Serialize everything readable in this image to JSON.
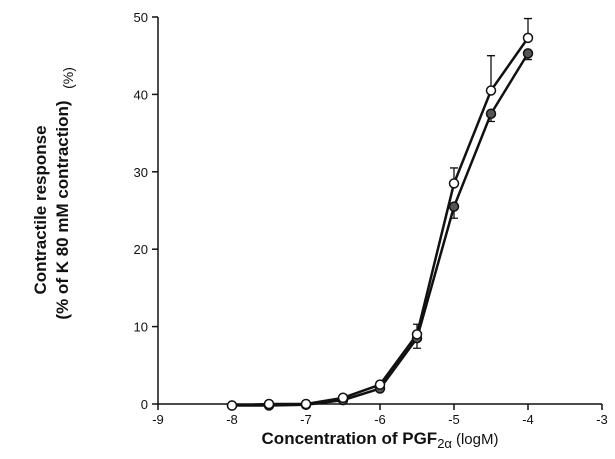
{
  "chart_data": {
    "type": "line",
    "y_label_lines": [
      "Contractile response",
      "(% of K 80 mM contraction)"
    ],
    "y_unit": "(%)",
    "x_label": "Concentration of PGF",
    "x_label_sub": "2α",
    "x_unit": "(logM)",
    "x": [
      -8,
      -7.5,
      -7,
      -6.5,
      -6,
      -5.5,
      -5,
      -4.5,
      -4
    ],
    "series": [
      {
        "color": "#111111",
        "marker": "filled",
        "error_direction": "down",
        "values": [
          -0.2,
          -0.2,
          -0.1,
          0.5,
          2,
          8.5,
          25.5,
          37.5,
          45.3
        ],
        "errors": [
          0,
          0,
          0,
          0.3,
          0.3,
          1.3,
          1.5,
          1,
          0.8
        ]
      },
      {
        "color": "#111111",
        "marker": "open",
        "error_direction": "up",
        "values": [
          -0.2,
          0,
          0,
          0.8,
          2.5,
          9,
          28.5,
          40.5,
          47.3
        ],
        "errors": [
          0,
          0,
          0,
          0.4,
          0.4,
          1.3,
          2,
          4.5,
          2.5
        ]
      }
    ],
    "xlim": [
      -9,
      -3
    ],
    "xticks": [
      -9,
      -8,
      -7,
      -6,
      -5,
      -4,
      -3
    ],
    "ylim": [
      0,
      50
    ],
    "yticks": [
      0,
      10,
      20,
      30,
      40,
      50
    ],
    "grid": false
  }
}
